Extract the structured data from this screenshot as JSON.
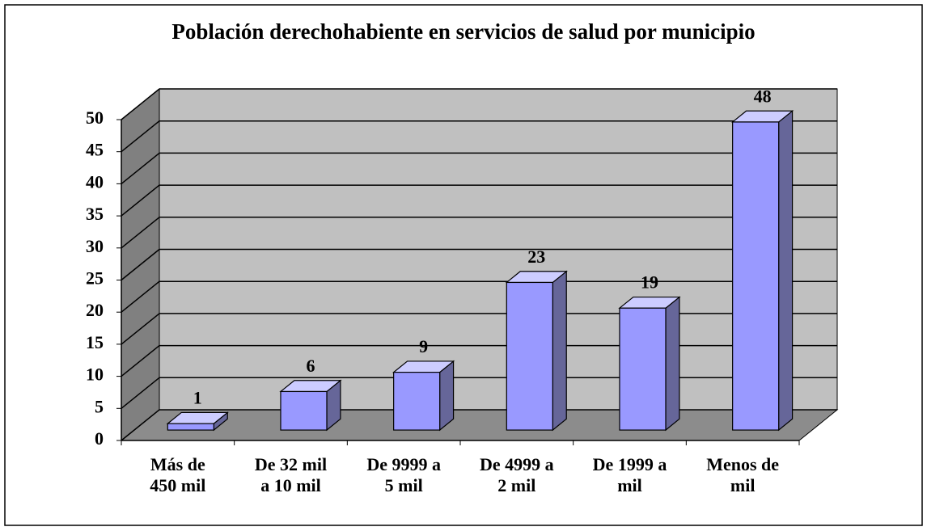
{
  "chart_data": {
    "type": "bar3d",
    "title": "Población derechohabiente en servicios de salud por municipio",
    "categories": [
      "Más de\n450 mil",
      "De 32 mil\na 10 mil",
      "De 9999 a\n5 mil",
      "De 4999 a\n2 mil",
      "De 1999 a\nmil",
      "Menos de\nmil"
    ],
    "values": [
      1,
      6,
      9,
      23,
      19,
      48
    ],
    "color": "#9999ff",
    "side_color": "#666699",
    "top_color": "#ccccff",
    "ylim": [
      0,
      50
    ],
    "yticks": [
      0,
      5,
      10,
      15,
      20,
      25,
      30,
      35,
      40,
      45,
      50
    ],
    "grid": true
  }
}
